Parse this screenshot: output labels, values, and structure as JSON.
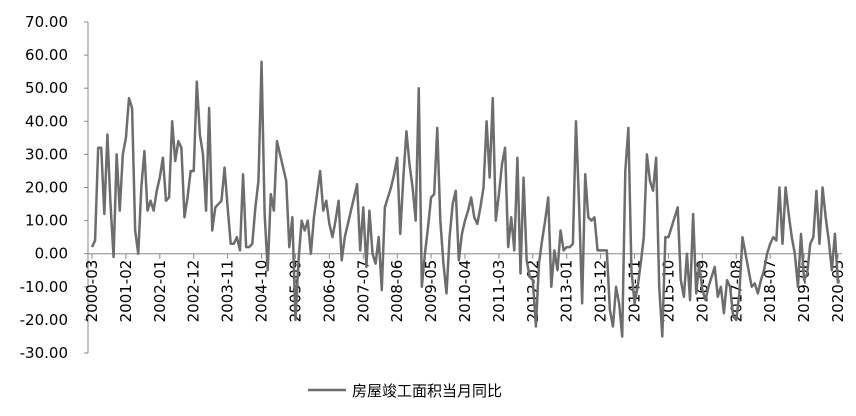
{
  "chart_data": {
    "type": "line",
    "categories": [
      "2000-03",
      null,
      null,
      null,
      null,
      null,
      null,
      null,
      null,
      null,
      null,
      "2001-02",
      null,
      null,
      null,
      null,
      null,
      null,
      null,
      null,
      null,
      null,
      "2002-01",
      null,
      null,
      null,
      null,
      null,
      null,
      null,
      null,
      null,
      null,
      "2002-12",
      null,
      null,
      null,
      null,
      null,
      null,
      null,
      null,
      null,
      null,
      "2003-11",
      null,
      null,
      null,
      null,
      null,
      null,
      null,
      null,
      null,
      null,
      "2004-10",
      null,
      null,
      null,
      null,
      null,
      null,
      null,
      null,
      null,
      null,
      "2005-09",
      null,
      null,
      null,
      null,
      null,
      null,
      null,
      null,
      null,
      null,
      "2006-08",
      null,
      null,
      null,
      null,
      null,
      null,
      null,
      null,
      null,
      null,
      "2007-07",
      null,
      null,
      null,
      null,
      null,
      null,
      null,
      null,
      null,
      null,
      "2008-06",
      null,
      null,
      null,
      null,
      null,
      null,
      null,
      null,
      null,
      null,
      "2009-05",
      null,
      null,
      null,
      null,
      null,
      null,
      null,
      null,
      null,
      null,
      "2010-04",
      null,
      null,
      null,
      null,
      null,
      null,
      null,
      null,
      null,
      null,
      "2011-03",
      null,
      null,
      null,
      null,
      null,
      null,
      null,
      null,
      null,
      null,
      "2012-02",
      null,
      null,
      null,
      null,
      null,
      null,
      null,
      null,
      null,
      null,
      "2013-01",
      null,
      null,
      null,
      null,
      null,
      null,
      null,
      null,
      null,
      null,
      "2013-12",
      null,
      null,
      null,
      null,
      null,
      null,
      null,
      null,
      null,
      null,
      "2014-11",
      null,
      null,
      null,
      null,
      null,
      null,
      null,
      null,
      null,
      null,
      "2015-10",
      null,
      null,
      null,
      null,
      null,
      null,
      null,
      null,
      null,
      null,
      "2016-09",
      null,
      null,
      null,
      null,
      null,
      null,
      null,
      null,
      null,
      null,
      "2017-08",
      null,
      null,
      null,
      null,
      null,
      null,
      null,
      null,
      null,
      null,
      "2018-07",
      null,
      null,
      null,
      null,
      null,
      null,
      null,
      null,
      null,
      null,
      "2019-06",
      null,
      null,
      null,
      null,
      null,
      null,
      null,
      null,
      null,
      null,
      "2020-05"
    ],
    "series": [
      {
        "name": "房屋竣工面积当月同比",
        "color": "#6d6d6d",
        "values": [
          2,
          4,
          32,
          32,
          12,
          36,
          15,
          -1,
          30,
          13,
          30,
          35,
          47,
          44,
          7,
          0,
          20,
          31,
          13,
          16,
          13,
          19,
          23,
          29,
          16,
          17,
          40,
          28,
          34,
          32,
          11,
          17,
          25,
          25,
          52,
          36,
          30,
          13,
          44,
          7,
          14,
          15,
          16,
          26,
          14,
          3,
          3,
          5,
          1,
          24,
          2,
          2,
          3,
          14,
          22,
          58,
          12,
          -5,
          18,
          13,
          34,
          30,
          26,
          22,
          2,
          11,
          -20,
          -2,
          10,
          7,
          10,
          0,
          11,
          18,
          25,
          13,
          16,
          9,
          5,
          10,
          16,
          -2,
          5,
          9,
          13,
          17,
          21,
          1,
          14,
          -4,
          13,
          0,
          -3,
          5,
          -11,
          14,
          17,
          20,
          24,
          29,
          6,
          23,
          37,
          27,
          20,
          10,
          50,
          -10,
          0,
          8,
          17,
          18,
          38,
          10,
          -3,
          -12,
          5,
          15,
          19,
          -2,
          6,
          10,
          13,
          17,
          11,
          9,
          14,
          20,
          40,
          23,
          47,
          10,
          18,
          27,
          32,
          2,
          11,
          1,
          29,
          -6,
          23,
          -2,
          -7,
          -8,
          -22,
          -3,
          4,
          10,
          17,
          -10,
          1,
          -5,
          7,
          1,
          2,
          2,
          3,
          40,
          15,
          -15,
          24,
          11,
          10,
          11,
          1,
          1,
          1,
          1,
          -17,
          -22,
          -10,
          -15,
          -25,
          25,
          38,
          -5,
          -15,
          -10,
          -3,
          5,
          30,
          22,
          19,
          29,
          -10,
          -25,
          5,
          5,
          8,
          11,
          14,
          -8,
          -13,
          0,
          -14,
          12,
          -12,
          -3,
          -11,
          -14,
          -10,
          -7,
          -4,
          -13,
          -10,
          -18,
          -8,
          -10,
          -19,
          -20,
          -12,
          5,
          0,
          -5,
          -10,
          -9,
          -12,
          -8,
          -5,
          0,
          3,
          5,
          4,
          20,
          3,
          20,
          12,
          5,
          0,
          -10,
          6,
          -8,
          -6,
          3,
          5,
          19,
          3,
          20,
          11,
          4,
          -5,
          6,
          -9
        ]
      }
    ],
    "ylim": [
      -30,
      70
    ],
    "yticks": [
      {
        "value": -30,
        "label": "-30.00"
      },
      {
        "value": -20,
        "label": "-20.00"
      },
      {
        "value": -10,
        "label": "-10.00"
      },
      {
        "value": 0,
        "label": "0.00"
      },
      {
        "value": 10,
        "label": "10.00"
      },
      {
        "value": 20,
        "label": "20.00"
      },
      {
        "value": 30,
        "label": "30.00"
      },
      {
        "value": 40,
        "label": "40.00"
      },
      {
        "value": 50,
        "label": "50.00"
      },
      {
        "value": 60,
        "label": "60.00"
      },
      {
        "value": 70,
        "label": "70.00"
      }
    ],
    "grid": false,
    "legend": "bottom"
  }
}
